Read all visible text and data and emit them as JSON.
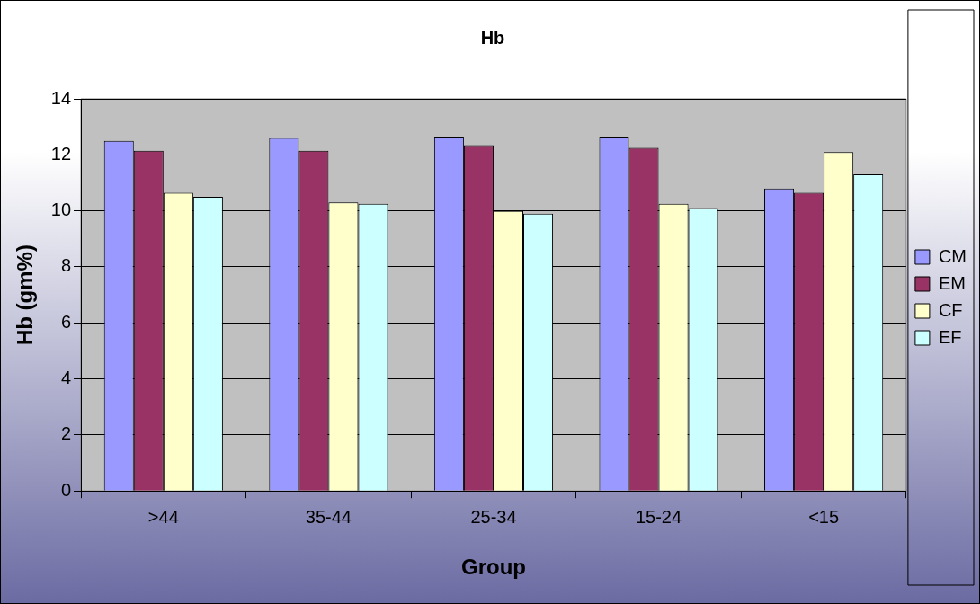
{
  "chart_data": {
    "type": "bar",
    "title": "Hb",
    "xlabel": "Group",
    "ylabel": "Hb (gm%)",
    "categories": [
      ">44",
      "35-44",
      "25-34",
      "15-24",
      "<15"
    ],
    "series": [
      {
        "name": "CM",
        "color": "#9999ff",
        "values": [
          12.5,
          12.6,
          12.65,
          12.65,
          10.8
        ]
      },
      {
        "name": "EM",
        "color": "#993366",
        "values": [
          12.15,
          12.15,
          12.35,
          12.25,
          10.65
        ]
      },
      {
        "name": "CF",
        "color": "#ffffcc",
        "values": [
          10.65,
          10.3,
          10.0,
          10.25,
          12.1
        ]
      },
      {
        "name": "EF",
        "color": "#ccffff",
        "values": [
          10.5,
          10.25,
          9.9,
          10.1,
          11.3
        ]
      }
    ],
    "ylim": [
      0,
      14
    ],
    "yticks": [
      0,
      2,
      4,
      6,
      8,
      10,
      12,
      14
    ],
    "grid": "y",
    "legend": "right"
  }
}
